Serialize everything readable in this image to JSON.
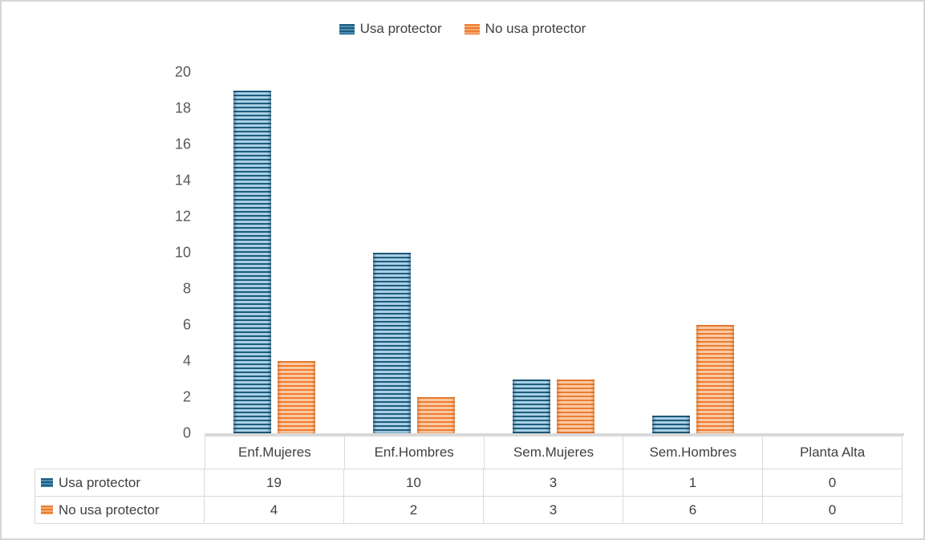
{
  "chart_data": {
    "type": "bar",
    "title": "",
    "categories": [
      "Enf.Mujeres",
      "Enf.Hombres",
      "Sem.Mujeres",
      "Sem.Hombres",
      "Planta Alta"
    ],
    "series": [
      {
        "name": "Usa protector",
        "values": [
          19,
          10,
          3,
          1,
          0
        ],
        "color_dark": "#1E5C7E",
        "color_light": "#A9CFE5",
        "pattern": "horizontal-stripes"
      },
      {
        "name": "No usa protector",
        "values": [
          4,
          2,
          3,
          6,
          0
        ],
        "color_dark": "#ED7D31",
        "color_light": "#F9C9A3",
        "pattern": "horizontal-stripes"
      }
    ],
    "xlabel": "",
    "ylabel": "",
    "ylim": [
      0,
      20
    ],
    "ytick_step": 2,
    "yticks": [
      "20",
      "18",
      "16",
      "14",
      "12",
      "10",
      "8",
      "6",
      "4",
      "2",
      "0"
    ],
    "grid": false,
    "legend_position": "top",
    "data_table": {
      "row_headers": [
        "Usa protector",
        "No usa protector"
      ],
      "rows": [
        [
          "19",
          "10",
          "3",
          "1",
          "0"
        ],
        [
          "4",
          "2",
          "3",
          "6",
          "0"
        ]
      ]
    }
  },
  "colors": {
    "series1_dark": "#1E5C7E",
    "series1_light": "#A9CFE5",
    "series2_dark": "#ED7D31",
    "series2_light": "#F9C9A3",
    "axis_label_text": "#595959",
    "body_text": "#404040",
    "table_border": "#D9D9D9",
    "frame_border": "#D8D6D4"
  }
}
